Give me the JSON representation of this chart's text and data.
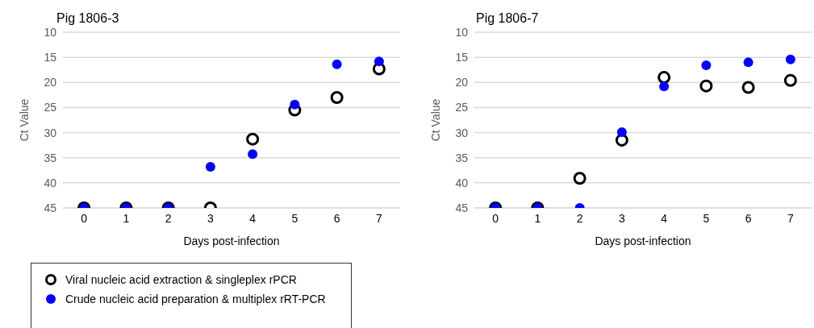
{
  "chart_data": [
    {
      "type": "scatter",
      "title": "Pig 1806-3",
      "xlabel": "Days post-infection",
      "ylabel": "Ct Value",
      "categories": [
        "0",
        "1",
        "2",
        "3",
        "4",
        "5",
        "6",
        "7"
      ],
      "ylim": [
        45,
        10
      ],
      "yticks": [
        10,
        15,
        20,
        25,
        30,
        35,
        40,
        45
      ],
      "grid": "y",
      "legend": "bottom left",
      "marker": "circle",
      "series": [
        {
          "name": "Viral nucleic acid extraction & singleplex rPCR",
          "color": "#000000",
          "values": [
            45,
            45,
            45,
            45,
            31.3,
            25.5,
            23,
            17.3
          ]
        },
        {
          "name": "Crude nucleic acid preparation & multiplex rRT-PCR",
          "color": "#0000ff",
          "values": [
            45,
            45,
            45,
            36.8,
            34.3,
            24.4,
            16.4,
            15.8
          ]
        }
      ]
    },
    {
      "type": "scatter",
      "title": "Pig 1806-7",
      "xlabel": "Days post-infection",
      "ylabel": "Ct Value",
      "categories": [
        "0",
        "1",
        "2",
        "3",
        "4",
        "5",
        "6",
        "7"
      ],
      "ylim": [
        45,
        10
      ],
      "yticks": [
        10,
        15,
        20,
        25,
        30,
        35,
        40,
        45
      ],
      "grid": "y",
      "legend": false,
      "marker": "circle",
      "series": [
        {
          "color": "#000000",
          "values": [
            45,
            45,
            39.1,
            31.5,
            19,
            20.7,
            21,
            19.6
          ]
        },
        {
          "color": "#0000ff",
          "values": [
            45,
            45,
            45,
            29.9,
            20.8,
            16.6,
            16,
            15.4
          ]
        }
      ]
    }
  ]
}
